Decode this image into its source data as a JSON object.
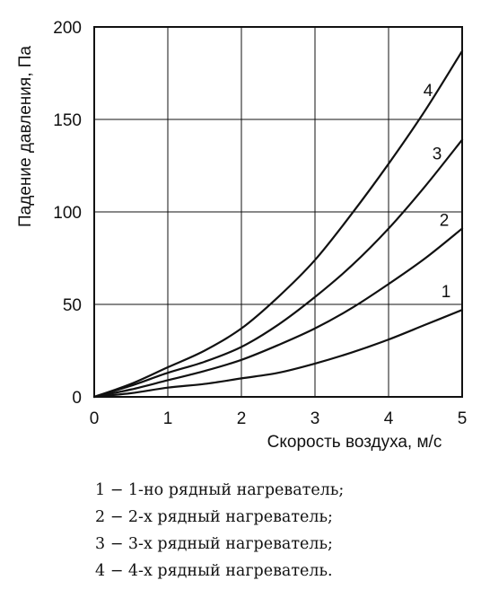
{
  "chart_data": {
    "type": "line",
    "xlabel": "Скорость воздуха, м/с",
    "ylabel": "Падение давления, Па",
    "xlim": [
      0,
      5
    ],
    "ylim": [
      0,
      200
    ],
    "x_ticks": [
      "0",
      "1",
      "2",
      "3",
      "4",
      "5"
    ],
    "y_ticks": [
      "0",
      "50",
      "100",
      "150",
      "200"
    ],
    "grid": true,
    "legend_position": "below",
    "x": [
      0,
      0.5,
      1,
      1.5,
      2,
      2.5,
      3,
      3.5,
      4,
      4.5,
      5
    ],
    "series": [
      {
        "name": "1",
        "values": [
          0,
          2,
          5,
          7,
          10,
          13,
          18,
          24,
          31,
          39,
          47
        ]
      },
      {
        "name": "2",
        "values": [
          0,
          4,
          9,
          14,
          20,
          28,
          37,
          48,
          61,
          75,
          91
        ]
      },
      {
        "name": "3",
        "values": [
          0,
          6,
          13,
          19,
          27,
          39,
          54,
          71,
          91,
          114,
          139
        ]
      },
      {
        "name": "4",
        "values": [
          0,
          7,
          16,
          25,
          37,
          54,
          74,
          99,
          126,
          155,
          187
        ]
      }
    ]
  },
  "legend": [
    "1 − 1-но рядный нагреватель;",
    "2 − 2-х рядный нагреватель;",
    "3 − 3-х рядный нагреватель;",
    "4 − 4-х рядный нагреватель."
  ]
}
